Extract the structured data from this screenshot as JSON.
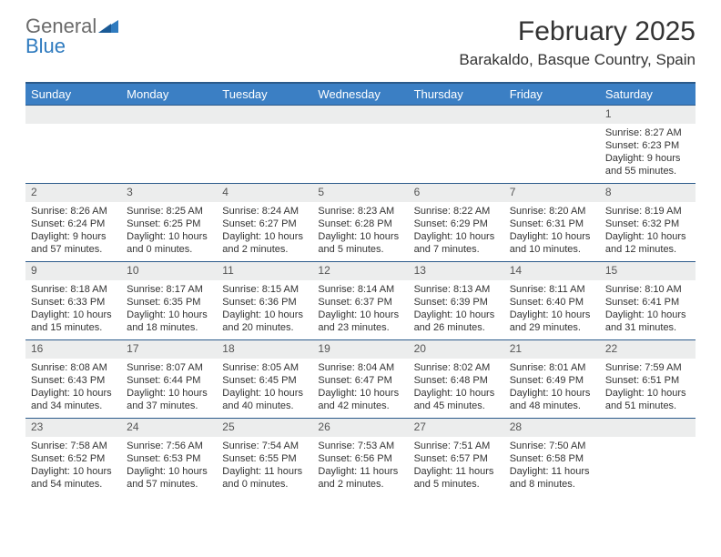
{
  "brand": {
    "word1": "General",
    "word2": "Blue"
  },
  "title": "February 2025",
  "location": "Barakaldo, Basque Country, Spain",
  "colors": {
    "header_bg": "#3b7fc4",
    "header_border": "#2b5a8a",
    "daynum_bg": "#eceded",
    "text": "#333333",
    "logo_gray": "#6a6a6a",
    "logo_blue": "#2f7bbf"
  },
  "weekdays": [
    "Sunday",
    "Monday",
    "Tuesday",
    "Wednesday",
    "Thursday",
    "Friday",
    "Saturday"
  ],
  "weeks": [
    [
      null,
      null,
      null,
      null,
      null,
      null,
      {
        "n": "1",
        "sunrise": "Sunrise: 8:27 AM",
        "sunset": "Sunset: 6:23 PM",
        "day1": "Daylight: 9 hours",
        "day2": "and 55 minutes."
      }
    ],
    [
      {
        "n": "2",
        "sunrise": "Sunrise: 8:26 AM",
        "sunset": "Sunset: 6:24 PM",
        "day1": "Daylight: 9 hours",
        "day2": "and 57 minutes."
      },
      {
        "n": "3",
        "sunrise": "Sunrise: 8:25 AM",
        "sunset": "Sunset: 6:25 PM",
        "day1": "Daylight: 10 hours",
        "day2": "and 0 minutes."
      },
      {
        "n": "4",
        "sunrise": "Sunrise: 8:24 AM",
        "sunset": "Sunset: 6:27 PM",
        "day1": "Daylight: 10 hours",
        "day2": "and 2 minutes."
      },
      {
        "n": "5",
        "sunrise": "Sunrise: 8:23 AM",
        "sunset": "Sunset: 6:28 PM",
        "day1": "Daylight: 10 hours",
        "day2": "and 5 minutes."
      },
      {
        "n": "6",
        "sunrise": "Sunrise: 8:22 AM",
        "sunset": "Sunset: 6:29 PM",
        "day1": "Daylight: 10 hours",
        "day2": "and 7 minutes."
      },
      {
        "n": "7",
        "sunrise": "Sunrise: 8:20 AM",
        "sunset": "Sunset: 6:31 PM",
        "day1": "Daylight: 10 hours",
        "day2": "and 10 minutes."
      },
      {
        "n": "8",
        "sunrise": "Sunrise: 8:19 AM",
        "sunset": "Sunset: 6:32 PM",
        "day1": "Daylight: 10 hours",
        "day2": "and 12 minutes."
      }
    ],
    [
      {
        "n": "9",
        "sunrise": "Sunrise: 8:18 AM",
        "sunset": "Sunset: 6:33 PM",
        "day1": "Daylight: 10 hours",
        "day2": "and 15 minutes."
      },
      {
        "n": "10",
        "sunrise": "Sunrise: 8:17 AM",
        "sunset": "Sunset: 6:35 PM",
        "day1": "Daylight: 10 hours",
        "day2": "and 18 minutes."
      },
      {
        "n": "11",
        "sunrise": "Sunrise: 8:15 AM",
        "sunset": "Sunset: 6:36 PM",
        "day1": "Daylight: 10 hours",
        "day2": "and 20 minutes."
      },
      {
        "n": "12",
        "sunrise": "Sunrise: 8:14 AM",
        "sunset": "Sunset: 6:37 PM",
        "day1": "Daylight: 10 hours",
        "day2": "and 23 minutes."
      },
      {
        "n": "13",
        "sunrise": "Sunrise: 8:13 AM",
        "sunset": "Sunset: 6:39 PM",
        "day1": "Daylight: 10 hours",
        "day2": "and 26 minutes."
      },
      {
        "n": "14",
        "sunrise": "Sunrise: 8:11 AM",
        "sunset": "Sunset: 6:40 PM",
        "day1": "Daylight: 10 hours",
        "day2": "and 29 minutes."
      },
      {
        "n": "15",
        "sunrise": "Sunrise: 8:10 AM",
        "sunset": "Sunset: 6:41 PM",
        "day1": "Daylight: 10 hours",
        "day2": "and 31 minutes."
      }
    ],
    [
      {
        "n": "16",
        "sunrise": "Sunrise: 8:08 AM",
        "sunset": "Sunset: 6:43 PM",
        "day1": "Daylight: 10 hours",
        "day2": "and 34 minutes."
      },
      {
        "n": "17",
        "sunrise": "Sunrise: 8:07 AM",
        "sunset": "Sunset: 6:44 PM",
        "day1": "Daylight: 10 hours",
        "day2": "and 37 minutes."
      },
      {
        "n": "18",
        "sunrise": "Sunrise: 8:05 AM",
        "sunset": "Sunset: 6:45 PM",
        "day1": "Daylight: 10 hours",
        "day2": "and 40 minutes."
      },
      {
        "n": "19",
        "sunrise": "Sunrise: 8:04 AM",
        "sunset": "Sunset: 6:47 PM",
        "day1": "Daylight: 10 hours",
        "day2": "and 42 minutes."
      },
      {
        "n": "20",
        "sunrise": "Sunrise: 8:02 AM",
        "sunset": "Sunset: 6:48 PM",
        "day1": "Daylight: 10 hours",
        "day2": "and 45 minutes."
      },
      {
        "n": "21",
        "sunrise": "Sunrise: 8:01 AM",
        "sunset": "Sunset: 6:49 PM",
        "day1": "Daylight: 10 hours",
        "day2": "and 48 minutes."
      },
      {
        "n": "22",
        "sunrise": "Sunrise: 7:59 AM",
        "sunset": "Sunset: 6:51 PM",
        "day1": "Daylight: 10 hours",
        "day2": "and 51 minutes."
      }
    ],
    [
      {
        "n": "23",
        "sunrise": "Sunrise: 7:58 AM",
        "sunset": "Sunset: 6:52 PM",
        "day1": "Daylight: 10 hours",
        "day2": "and 54 minutes."
      },
      {
        "n": "24",
        "sunrise": "Sunrise: 7:56 AM",
        "sunset": "Sunset: 6:53 PM",
        "day1": "Daylight: 10 hours",
        "day2": "and 57 minutes."
      },
      {
        "n": "25",
        "sunrise": "Sunrise: 7:54 AM",
        "sunset": "Sunset: 6:55 PM",
        "day1": "Daylight: 11 hours",
        "day2": "and 0 minutes."
      },
      {
        "n": "26",
        "sunrise": "Sunrise: 7:53 AM",
        "sunset": "Sunset: 6:56 PM",
        "day1": "Daylight: 11 hours",
        "day2": "and 2 minutes."
      },
      {
        "n": "27",
        "sunrise": "Sunrise: 7:51 AM",
        "sunset": "Sunset: 6:57 PM",
        "day1": "Daylight: 11 hours",
        "day2": "and 5 minutes."
      },
      {
        "n": "28",
        "sunrise": "Sunrise: 7:50 AM",
        "sunset": "Sunset: 6:58 PM",
        "day1": "Daylight: 11 hours",
        "day2": "and 8 minutes."
      },
      null
    ]
  ]
}
